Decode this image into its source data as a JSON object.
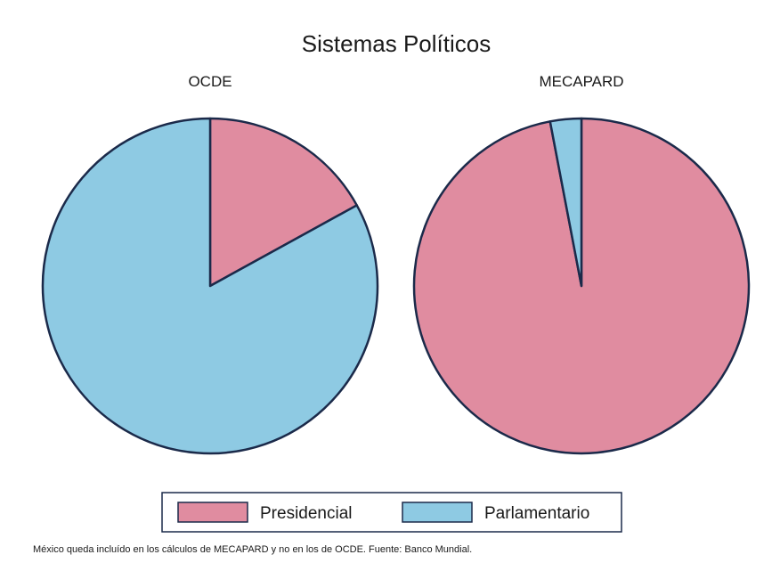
{
  "chart_data": {
    "type": "pie",
    "title": "Sistemas Políticos",
    "series_names": [
      "Presidencial",
      "Parlamentario"
    ],
    "colors": {
      "Presidencial": "#e08ca0",
      "Parlamentario": "#8ecae3",
      "outline": "#1b2a4a"
    },
    "pies": [
      {
        "name": "OCDE",
        "values": [
          17,
          83
        ]
      },
      {
        "name": "MECAPARD",
        "values": [
          97,
          3
        ]
      }
    ],
    "legend": {
      "position": "bottom",
      "entries": [
        "Presidencial",
        "Parlamentario"
      ]
    },
    "note": "México queda incluído en los cálculos de MECAPARD y no en los de OCDE. Fuente: Banco Mundial."
  }
}
